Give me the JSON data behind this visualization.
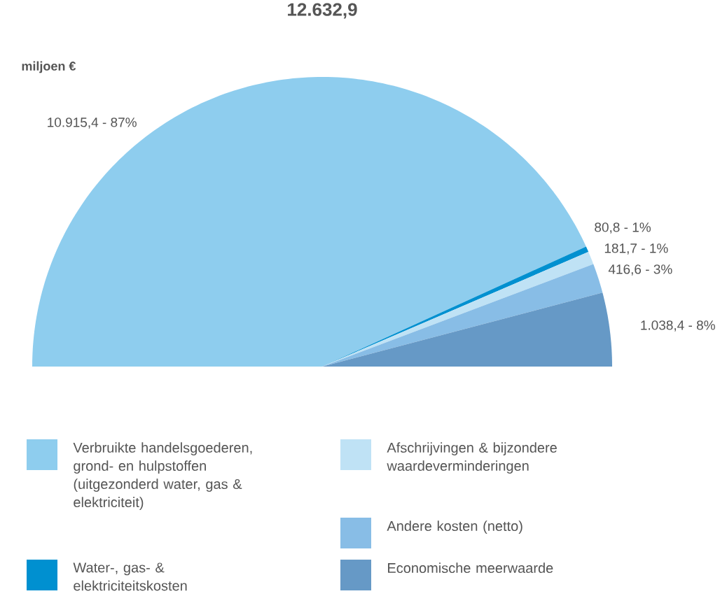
{
  "chart_data": {
    "type": "pie",
    "title": "12.632,9",
    "subtitle": "miljoen €",
    "categories": [
      "Verbruikte handelsgoederen, grond- en hulpstoffen (uitgezonderd water, gas & elektriciteit)",
      "Water-, gas- & elektriciteitskosten",
      "Afschrijvingen & bijzondere waardeverminderingen",
      "Andere kosten (netto)",
      "Economische meerwaarde"
    ],
    "values": [
      10915.4,
      80.8,
      181.7,
      416.6,
      1038.4
    ],
    "colors": [
      "#8ecdee",
      "#0090d0",
      "#bfe2f5",
      "#88bde6",
      "#6699c6"
    ],
    "value_labels": [
      "10.915,4 - 87%",
      "80,8 - 1%",
      "181,7 - 1%",
      "416,6 - 3%",
      "1.038,4 - 8%"
    ],
    "legend": "bottom"
  }
}
